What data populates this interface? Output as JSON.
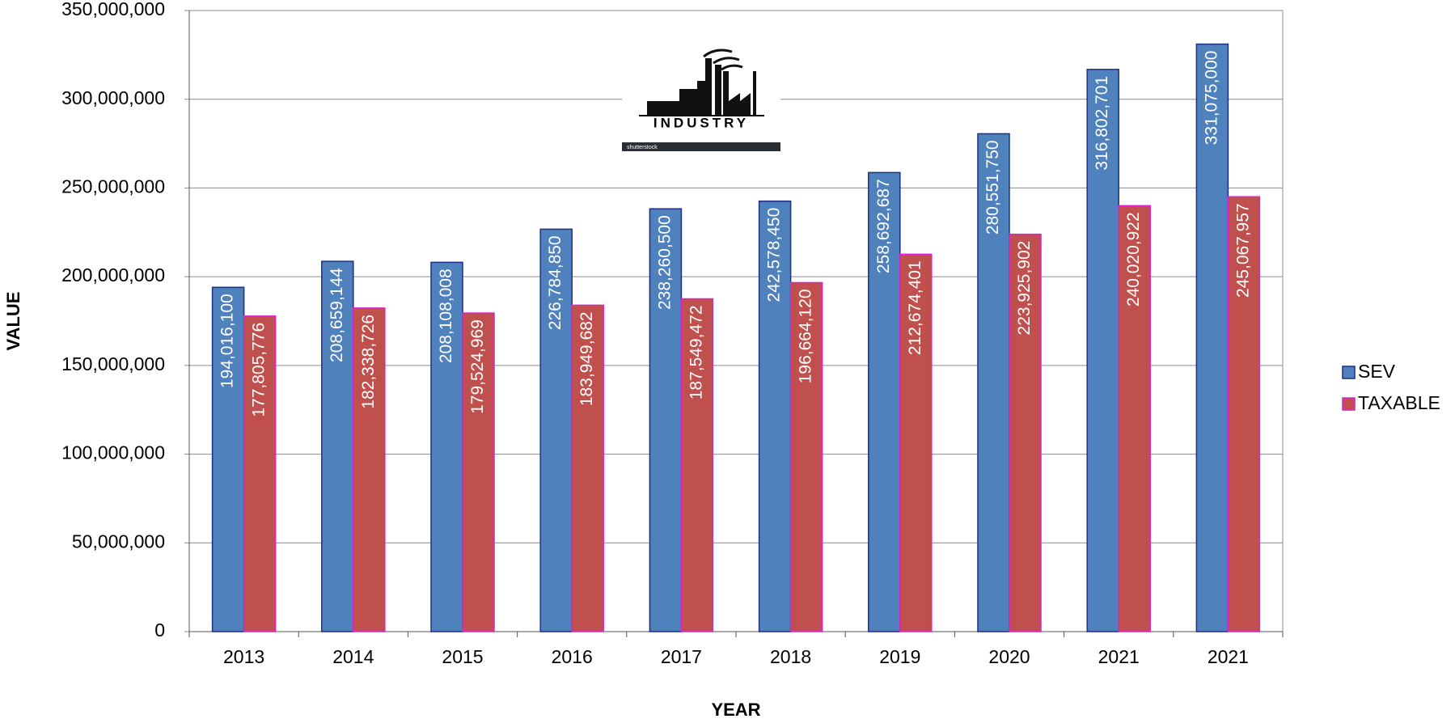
{
  "chart_data": {
    "type": "bar",
    "x_label": "YEAR",
    "y_label": "VALUE",
    "image_caption": "INDUSTRY",
    "image_watermark": "shutterstock",
    "categories": [
      "2013",
      "2014",
      "2015",
      "2016",
      "2017",
      "2018",
      "2019",
      "2020",
      "2021",
      "2021"
    ],
    "series": [
      {
        "name": "SEV",
        "color": "#4f81bd",
        "edge_color": "#1f2f86",
        "values": [
          194016100,
          208659144,
          208108008,
          226784850,
          238260500,
          242578450,
          258692687,
          280551750,
          316802701,
          331075000
        ],
        "value_labels": [
          "194,016,100",
          "208,659,144",
          "208,108,008",
          "226,784,850",
          "238,260,500",
          "242,578,450",
          "258,692,687",
          "280,551,750",
          "316,802,701",
          "331,075,000"
        ]
      },
      {
        "name": "TAXABLE",
        "color": "#c0504d",
        "edge_color": "#e020d0",
        "values": [
          177805776,
          182338726,
          179524969,
          183949682,
          187549472,
          196664120,
          212674401,
          223925902,
          240020922,
          245067957
        ],
        "value_labels": [
          "177,805,776",
          "182,338,726",
          "179,524,969",
          "183,949,682",
          "187,549,472",
          "196,664,120",
          "212,674,401",
          "223,925,902",
          "240,020,922",
          "245,067,957"
        ]
      }
    ],
    "ylim": [
      0,
      350000000
    ],
    "yticks": [
      0,
      {
        "value": 50000000,
        "label": "50,000,000"
      },
      {
        "value": 100000000,
        "label": "100,000,000"
      },
      {
        "value": 150000000,
        "label": "150,000,000"
      },
      {
        "value": 200000000,
        "label": "200,000,000"
      },
      {
        "value": 250000000,
        "label": "250,000,000"
      },
      {
        "value": 300000000,
        "label": "300,000,000"
      },
      {
        "value": 350000000,
        "label": "350,000,000"
      }
    ],
    "grid": true,
    "legend": "right"
  }
}
